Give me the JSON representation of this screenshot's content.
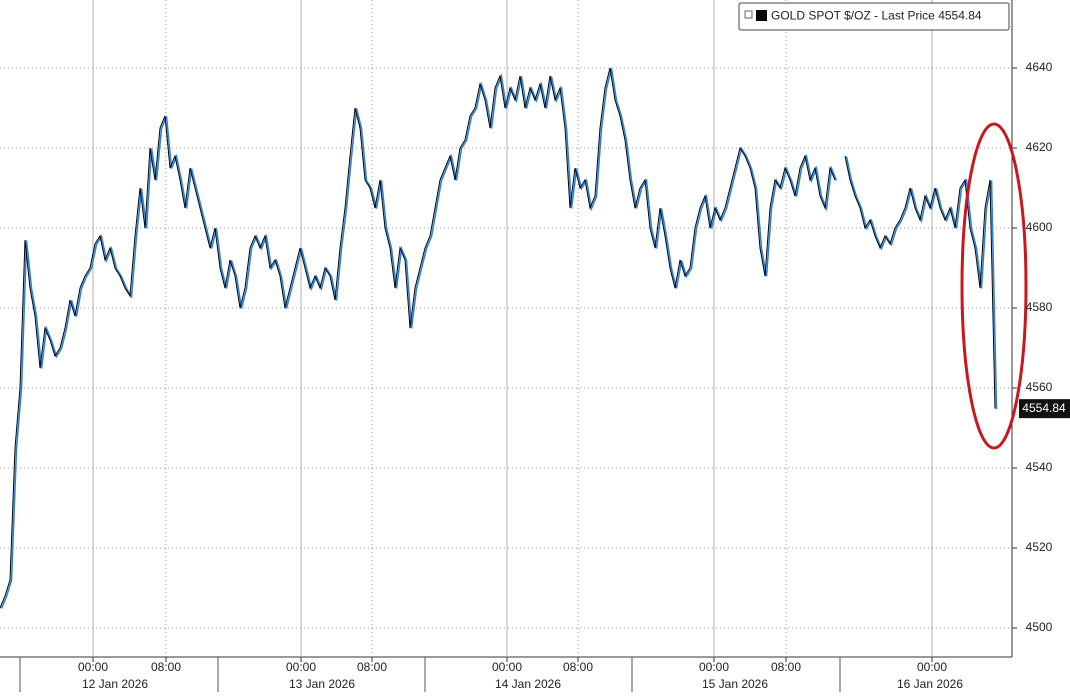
{
  "chart_data": {
    "type": "line",
    "legend_last_label": "Last Price",
    "series": [
      {
        "name": "GOLD SPOT $/OZ",
        "color": "#000000",
        "shadow_color": "#2f80d8",
        "values": [
          4505,
          4508,
          4512,
          4545,
          4560,
          4597,
          4585,
          4578,
          4565,
          4575,
          4572,
          4568,
          4570,
          4575,
          4582,
          4578,
          4585,
          4588,
          4590,
          4596,
          4598,
          4592,
          4595,
          4590,
          4588,
          4585,
          4583,
          4598,
          4610,
          4600,
          4620,
          4612,
          4625,
          4628,
          4615,
          4618,
          4612,
          4605,
          4615,
          4610,
          4605,
          4600,
          4595,
          4600,
          4590,
          4585,
          4592,
          4588,
          4580,
          4585,
          4595,
          4598,
          4595,
          4598,
          4590,
          4592,
          4588,
          4580,
          4585,
          4590,
          4595,
          4590,
          4585,
          4588,
          4585,
          4590,
          4588,
          4582,
          4595,
          4605,
          4618,
          4630,
          4625,
          4612,
          4610,
          4605,
          4612,
          4600,
          4595,
          4585,
          4595,
          4592,
          4575,
          4585,
          4590,
          4595,
          4598,
          4605,
          4612,
          4615,
          4618,
          4612,
          4620,
          4622,
          4628,
          4630,
          4636,
          4632,
          4625,
          4635,
          4638,
          4630,
          4635,
          4632,
          4638,
          4630,
          4635,
          4632,
          4636,
          4630,
          4638,
          4632,
          4635,
          4625,
          4605,
          4615,
          4610,
          4612,
          4605,
          4608,
          4625,
          4635,
          4640,
          4632,
          4628,
          4622,
          4612,
          4605,
          4610,
          4612,
          4600,
          4595,
          4605,
          4598,
          4590,
          4585,
          4592,
          4588,
          4590,
          4600,
          4605,
          4608,
          4600,
          4605,
          4602,
          4605,
          4610,
          4615,
          4620,
          4618,
          4615,
          4610,
          4595,
          4588,
          4605,
          4612,
          4610,
          4615,
          4612,
          4608,
          4615,
          4618,
          4612,
          4615,
          4608,
          4605,
          4615,
          4612,
          null,
          4618,
          4612,
          4608,
          4605,
          4600,
          4602,
          4598,
          4595,
          4598,
          4596,
          4600,
          4602,
          4605,
          4610,
          4605,
          4602,
          4608,
          4605,
          4610,
          4605,
          4602,
          4605,
          4600,
          4610,
          4612,
          4600,
          4595,
          4585,
          4605,
          4612,
          4554.84
        ]
      }
    ],
    "xlim": [
      0,
      202.4
    ],
    "ylim": [
      4492.75,
      4657
    ],
    "yticks": [
      4500,
      4520,
      4540,
      4560,
      4580,
      4600,
      4620,
      4640
    ],
    "xticks": [
      {
        "value": 18.6,
        "label": "00:00"
      },
      {
        "value": 33.2,
        "label": "08:00"
      },
      {
        "value": 60.2,
        "label": "00:00"
      },
      {
        "value": 74.4,
        "label": "08:00"
      },
      {
        "value": 101.4,
        "label": "00:00"
      },
      {
        "value": 115.6,
        "label": "08:00"
      },
      {
        "value": 142.8,
        "label": "00:00"
      },
      {
        "value": 157.2,
        "label": "08:00"
      },
      {
        "value": 186.4,
        "label": "00:00"
      }
    ],
    "date_labels": [
      {
        "value": 23,
        "label": "12 Jan 2026"
      },
      {
        "value": 64.4,
        "label": "13 Jan 2026"
      },
      {
        "value": 105.6,
        "label": "14 Jan 2026"
      },
      {
        "value": 147,
        "label": "15 Jan 2026"
      },
      {
        "value": 186,
        "label": "16 Jan 2026"
      }
    ],
    "grid": true
  }
}
